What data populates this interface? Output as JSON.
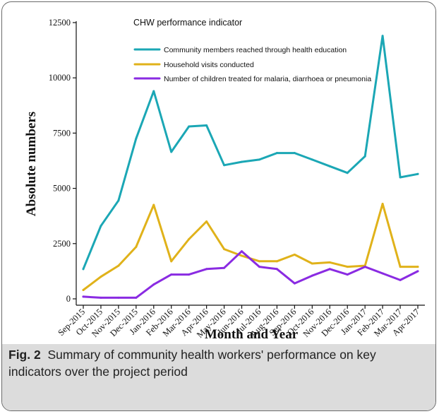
{
  "chart_data": {
    "type": "line",
    "legend_title": "CHW performance indicator",
    "legend_position": "top-right",
    "xlabel": "Month and Year",
    "ylabel": "Absolute numbers",
    "ylim": [
      0,
      12500
    ],
    "yticks": [
      "0",
      "2500",
      "5000",
      "7500",
      "10000",
      "12500"
    ],
    "ytick_values": [
      0,
      2500,
      5000,
      7500,
      10000,
      12500
    ],
    "grid": false,
    "categories": [
      "Sep-2015",
      "Oct-2015",
      "Nov-2015",
      "Dec-2015",
      "Jan-2016",
      "Feb-2016",
      "Mar-2016",
      "Apr-2016",
      "May-2016",
      "Jun-2016",
      "Jul-2016",
      "Aug-2016",
      "Sep-2016",
      "Oct-2016",
      "Nov-2016",
      "Dec-2016",
      "Jan-2017",
      "Feb-2017",
      "Mar-2017",
      "Apr-2017"
    ],
    "series": [
      {
        "name": "Community members reached through health education",
        "color": "#1ba7b5",
        "values": [
          1350,
          3300,
          4450,
          7250,
          9400,
          6650,
          7800,
          7850,
          6050,
          6200,
          6300,
          6600,
          6600,
          6300,
          6000,
          5700,
          6450,
          11900,
          5500,
          5650
        ]
      },
      {
        "name": "Household visits conducted",
        "color": "#e0b21a",
        "values": [
          400,
          1000,
          1500,
          2350,
          4250,
          1700,
          2700,
          3500,
          2250,
          1950,
          1700,
          1700,
          2000,
          1600,
          1650,
          1450,
          1500,
          4300,
          1450,
          1450
        ]
      },
      {
        "name": "Number of children treated for malaria, diarrhoea or pneumonia",
        "color": "#8a2be2",
        "values": [
          100,
          50,
          50,
          50,
          650,
          1100,
          1100,
          1350,
          1400,
          2150,
          1450,
          1350,
          700,
          1050,
          1350,
          1100,
          1450,
          1150,
          850,
          1250
        ]
      }
    ]
  },
  "caption": {
    "label": "Fig. 2",
    "text": "Summary of community health workers' performance on key indicators over the project period"
  }
}
